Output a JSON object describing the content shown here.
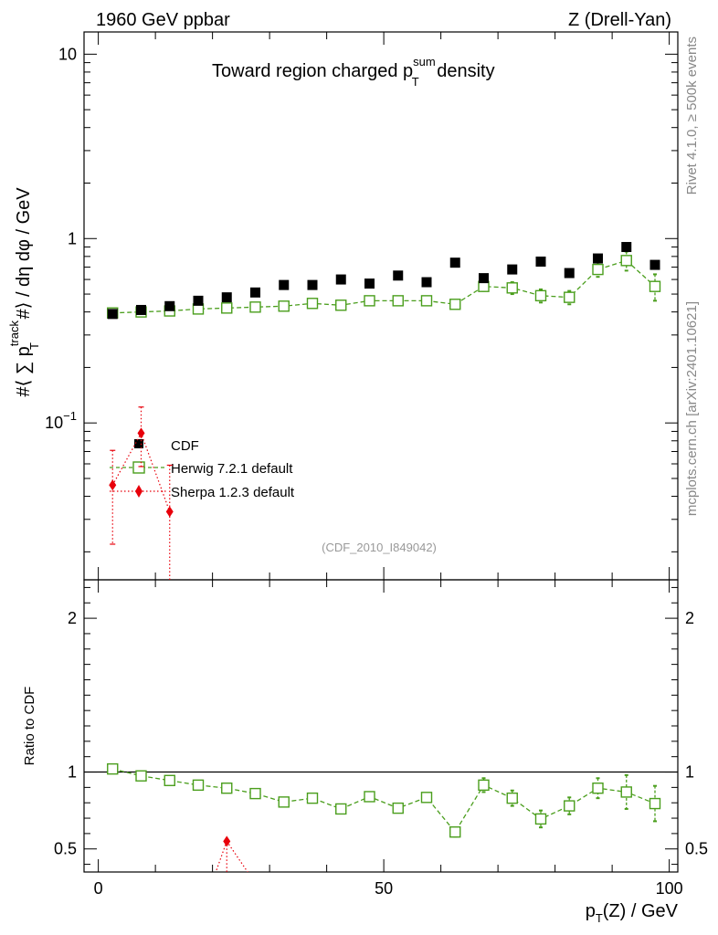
{
  "header": {
    "left": "1960 GeV ppbar",
    "right": "Z (Drell-Yan)"
  },
  "side_labels": {
    "rivet": "Rivet 4.1.0, ≥ 500k events",
    "mcplots": "mcplots.cern.ch [arXiv:2401.10621]"
  },
  "chart_data": {
    "type": "scatter",
    "title": "Toward region charged p_T^sum density",
    "title_parts": {
      "pre": "Toward region charged p",
      "sup": "sum",
      "sub": "T",
      "post": " density"
    },
    "analysis_id": "(CDF_2010_I849042)",
    "xlabel": "p_T(Z) / GeV",
    "xlabel_parts": {
      "main": "p",
      "sub": "T",
      "post": "(Z) / GeV"
    },
    "ylabel": "#⟨ ∑ p_T^track #⟩ / dη dφ / GeV",
    "ylabel_parts": {
      "pre": "#⟨ ∑ p",
      "sup": "track",
      "sub": "T",
      "post": " #⟩ / dη dφ / GeV"
    },
    "ratio_ylabel": "Ratio to CDF",
    "xlim": [
      -2.5,
      101.5
    ],
    "ylim_main": [
      0.0141,
      13.2
    ],
    "yscale_main": "log",
    "ylim_ratio": [
      0.35,
      2.25
    ],
    "x_ticks": [
      0,
      50,
      100
    ],
    "x_tick_labels": [
      "0",
      "50",
      "100"
    ],
    "y_ticks_main": [
      {
        "value": 0.1,
        "base": "10",
        "exp": "−1"
      },
      {
        "value": 1,
        "base": "1",
        "exp": ""
      },
      {
        "value": 10,
        "base": "10",
        "exp": ""
      }
    ],
    "y_ticks_ratio": [
      {
        "value": 0.5,
        "label": "0.5"
      },
      {
        "value": 1,
        "label": "1"
      },
      {
        "value": 2,
        "label": "2"
      }
    ],
    "legend_position": "center-left",
    "series": [
      {
        "name": "CDF",
        "role": "data",
        "color": "#000000",
        "marker": "filled-square",
        "x": [
          2.5,
          7.5,
          12.5,
          17.5,
          22.5,
          27.5,
          32.5,
          37.5,
          42.5,
          47.5,
          52.5,
          57.5,
          62.5,
          67.5,
          72.5,
          77.5,
          82.5,
          87.5,
          92.5,
          97.5
        ],
        "y": [
          0.39,
          0.41,
          0.43,
          0.46,
          0.48,
          0.51,
          0.56,
          0.56,
          0.6,
          0.57,
          0.63,
          0.58,
          0.74,
          0.61,
          0.68,
          0.75,
          0.65,
          0.78,
          0.9,
          0.72
        ]
      },
      {
        "name": "Herwig 7.2.1 default",
        "role": "mc",
        "color": "#4a9e1c",
        "marker": "open-square",
        "line": "dashed",
        "x": [
          2.5,
          7.5,
          12.5,
          17.5,
          22.5,
          27.5,
          32.5,
          37.5,
          42.5,
          47.5,
          52.5,
          57.5,
          62.5,
          67.5,
          72.5,
          77.5,
          82.5,
          87.5,
          92.5,
          97.5
        ],
        "y": [
          0.395,
          0.4,
          0.405,
          0.415,
          0.42,
          0.425,
          0.43,
          0.445,
          0.435,
          0.46,
          0.46,
          0.46,
          0.44,
          0.55,
          0.54,
          0.49,
          0.48,
          0.68,
          0.76,
          0.55
        ],
        "err": [
          0.004,
          0.004,
          0.004,
          0.005,
          0.005,
          0.006,
          0.006,
          0.007,
          0.007,
          0.009,
          0.01,
          0.012,
          0.015,
          0.03,
          0.04,
          0.04,
          0.04,
          0.06,
          0.09,
          0.09
        ],
        "ratio": [
          1.02,
          0.975,
          0.945,
          0.915,
          0.895,
          0.86,
          0.805,
          0.83,
          0.76,
          0.84,
          0.765,
          0.835,
          0.61,
          0.915,
          0.83,
          0.695,
          0.78,
          0.895,
          0.87,
          0.795
        ],
        "ratio_err": [
          0.005,
          0.006,
          0.007,
          0.008,
          0.008,
          0.01,
          0.012,
          0.014,
          0.015,
          0.018,
          0.02,
          0.025,
          0.03,
          0.045,
          0.05,
          0.055,
          0.055,
          0.065,
          0.11,
          0.115
        ]
      },
      {
        "name": "Sherpa 1.2.3 default",
        "role": "mc",
        "color": "#e8000b",
        "marker": "filled-diamond",
        "line": "dotted",
        "x": [
          2.5,
          7.5,
          12.5
        ],
        "y": [
          0.046,
          0.088,
          0.033
        ],
        "err_lo": [
          0.024,
          0.03,
          0.025
        ],
        "err_hi": [
          0.025,
          0.034,
          0.026
        ],
        "ratio_x": [
          22.5
        ],
        "ratio": [
          0.55
        ],
        "ratio_err_lo": [
          0.3
        ],
        "ratio_err_hi": [
          0.0
        ]
      }
    ]
  }
}
